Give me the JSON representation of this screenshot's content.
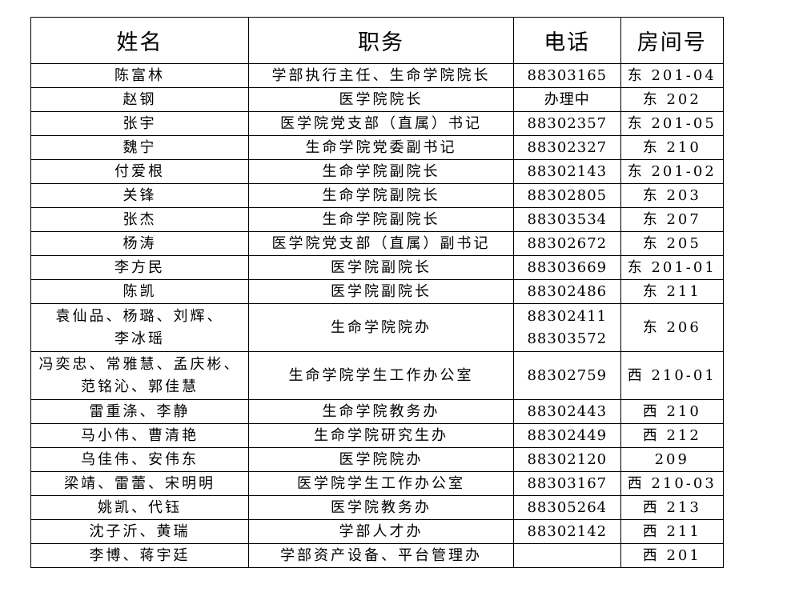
{
  "headers": [
    "姓名",
    "职务",
    "电话",
    "房间号"
  ],
  "rows": [
    {
      "name": [
        "陈富林"
      ],
      "role": "学部执行主任、生命学院院长",
      "phone": [
        "88303165"
      ],
      "room": "东 201-04"
    },
    {
      "name": [
        "赵钢"
      ],
      "role": "医学院院长",
      "phone": [
        "办理中"
      ],
      "room": "东 202"
    },
    {
      "name": [
        "张宇"
      ],
      "role": "医学院党支部（直属）书记",
      "phone": [
        "88302357"
      ],
      "room": "东 201-05"
    },
    {
      "name": [
        "魏宁"
      ],
      "role": "生命学院党委副书记",
      "phone": [
        "88302327"
      ],
      "room": "东 210"
    },
    {
      "name": [
        "付爱根"
      ],
      "role": "生命学院副院长",
      "phone": [
        "88302143"
      ],
      "room": "东 201-02"
    },
    {
      "name": [
        "关锋"
      ],
      "role": "生命学院副院长",
      "phone": [
        "88302805"
      ],
      "room": "东 203"
    },
    {
      "name": [
        "张杰"
      ],
      "role": "生命学院副院长",
      "phone": [
        "88303534"
      ],
      "room": "东 207"
    },
    {
      "name": [
        "杨涛"
      ],
      "role": "医学院党支部（直属）副书记",
      "phone": [
        "88302672"
      ],
      "room": "东 205"
    },
    {
      "name": [
        "李方民"
      ],
      "role": "医学院副院长",
      "phone": [
        "88303669"
      ],
      "room": "东 201-01"
    },
    {
      "name": [
        "陈凯"
      ],
      "role": "医学院副院长",
      "phone": [
        "88302486"
      ],
      "room": "东 211"
    },
    {
      "name": [
        "袁仙品、杨璐、刘辉、",
        "李冰瑶"
      ],
      "role": "生命学院院办",
      "phone": [
        "88302411",
        "88303572"
      ],
      "room": "东 206"
    },
    {
      "name": [
        "冯奕忠、常雅慧、孟庆彬、",
        "范铭沁、郭佳慧"
      ],
      "role": "生命学院学生工作办公室",
      "phone": [
        "88302759"
      ],
      "room": "西 210-01"
    },
    {
      "name": [
        "雷重涤、李静"
      ],
      "role": "生命学院教务办",
      "phone": [
        "88302443"
      ],
      "room": "西 210"
    },
    {
      "name": [
        "马小伟、曹清艳"
      ],
      "role": "生命学院研究生办",
      "phone": [
        "88302449"
      ],
      "room": "西 212"
    },
    {
      "name": [
        "乌佳伟、安伟东"
      ],
      "role": "医学院院办",
      "phone": [
        "88302120"
      ],
      "room": "209"
    },
    {
      "name": [
        "梁靖、雷蕾、宋明明"
      ],
      "role": "医学院学生工作办公室",
      "phone": [
        "88303167"
      ],
      "room": "西 210-03"
    },
    {
      "name": [
        "姚凯、代钰"
      ],
      "role": "医学院教务办",
      "phone": [
        "88305264"
      ],
      "room": "西 213"
    },
    {
      "name": [
        "沈子沂、黄瑞"
      ],
      "role": "学部人才办",
      "phone": [
        "88302142"
      ],
      "room": "西 211"
    },
    {
      "name": [
        "李博、蒋宇廷"
      ],
      "role": "学部资产设备、平台管理办",
      "phone": [],
      "room": "西 201"
    }
  ]
}
